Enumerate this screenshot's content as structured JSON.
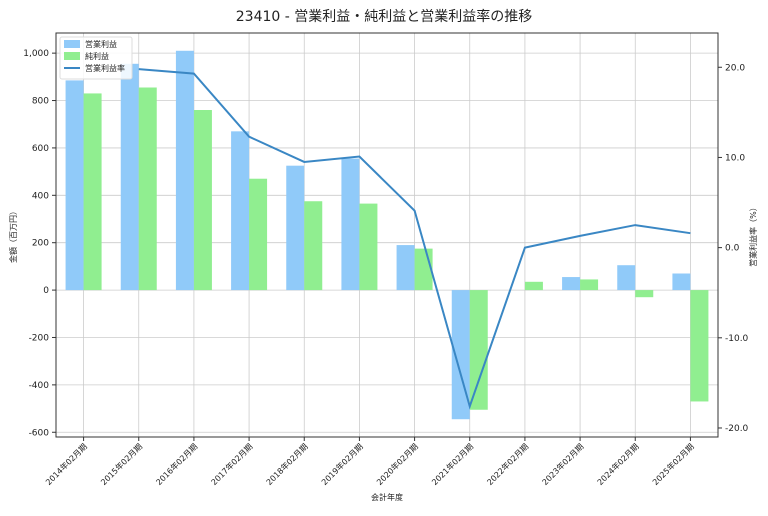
{
  "chart_data": {
    "type": "bar",
    "title": "23410 - 営業利益・純利益と営業利益率の推移",
    "xlabel": "会計年度",
    "ylabel": "金額（百万円）",
    "y2label": "営業利益率（%）",
    "categories": [
      "2014年02月期",
      "2015年02月期",
      "2016年02月期",
      "2017年02月期",
      "2018年02月期",
      "2019年02月期",
      "2020年02月期",
      "2021年02月期",
      "2022年02月期",
      "2023年02月期",
      "2024年02月期",
      "2025年02月期"
    ],
    "ylim": [
      -620,
      1085
    ],
    "y2lim": [
      -21.0,
      23.8
    ],
    "yticks": [
      -600,
      -400,
      -200,
      0,
      200,
      400,
      600,
      800,
      1000
    ],
    "ytick_labels": [
      "-600",
      "-400",
      "-200",
      "0",
      "200",
      "400",
      "600",
      "800",
      "1,000"
    ],
    "y2ticks": [
      -20,
      -10,
      0,
      10,
      20
    ],
    "y2tick_labels": [
      "-20.0",
      "-10.0",
      "0.0",
      "10.0",
      "20.0"
    ],
    "grid": true,
    "legend_position": "top-left",
    "series": [
      {
        "name": "営業利益",
        "kind": "bar",
        "axis": "left",
        "color": "#90caf9",
        "values": [
          885,
          955,
          1010,
          670,
          525,
          555,
          190,
          -545,
          null,
          55,
          105,
          70
        ]
      },
      {
        "name": "純利益",
        "kind": "bar",
        "axis": "left",
        "color": "#90ee90",
        "values": [
          830,
          855,
          760,
          470,
          375,
          365,
          175,
          -505,
          35,
          45,
          -30,
          -470
        ]
      },
      {
        "name": "営業利益率",
        "kind": "line",
        "axis": "right",
        "color": "#3a87c4",
        "values": [
          null,
          19.8,
          19.3,
          12.3,
          9.5,
          10.1,
          4.1,
          -17.6,
          0.0,
          1.3,
          2.5,
          1.6
        ]
      }
    ]
  }
}
